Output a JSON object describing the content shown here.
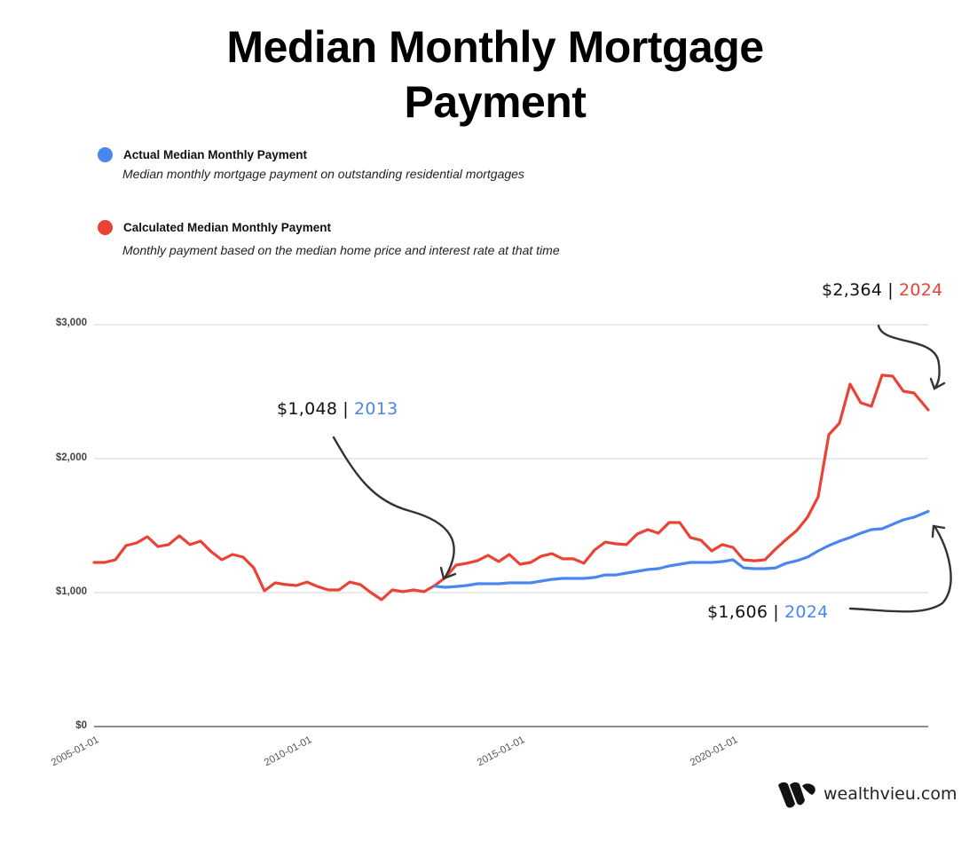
{
  "title_line1": "Median Monthly Mortgage",
  "title_line2": "Payment",
  "legend": [
    {
      "name": "Actual Median Monthly Payment",
      "description": "Median monthly mortgage payment on outstanding residential mortgages",
      "color": "#4a86f0"
    },
    {
      "name": "Calculated Median Monthly Payment",
      "description": "Monthly payment based on the median home price and interest rate at that time",
      "color": "#ea4335"
    }
  ],
  "annotations": [
    {
      "value": "$1,048",
      "sep": "|",
      "year": "2013",
      "year_color": "#4a86f0"
    },
    {
      "value": "$2,364",
      "sep": "|",
      "year": "2024",
      "year_color": "#ea4335"
    },
    {
      "value": "$1,606",
      "sep": "|",
      "year": "2024",
      "year_color": "#4a86f0"
    }
  ],
  "brand": {
    "name": "wealthvieu.com"
  },
  "chart_data": {
    "type": "line",
    "title": "Median Monthly Mortgage Payment",
    "xlabel": "",
    "ylabel": "",
    "ylim": [
      0,
      3000
    ],
    "yticks": [
      "$0",
      "$1,000",
      "$2,000",
      "$3,000"
    ],
    "xticks": [
      "2005-01-01",
      "2010-01-01",
      "2015-01-01",
      "2020-01-01"
    ],
    "grid": true,
    "legend_position": "top-left",
    "x_frequency": "quarterly",
    "x_start": "2005-Q1",
    "x_end": "2024-Q3",
    "series": [
      {
        "name": "Calculated Median Monthly Payment",
        "color": "#ea4335",
        "start_index": 0,
        "values": [
          1225,
          1225,
          1245,
          1351,
          1371,
          1417,
          1344,
          1358,
          1424,
          1358,
          1384,
          1305,
          1245,
          1285,
          1265,
          1185,
          1013,
          1073,
          1060,
          1053,
          1079,
          1046,
          1020,
          1020,
          1079,
          1060,
          1000,
          947,
          1020,
          1007,
          1020,
          1007,
          1053,
          1113,
          1205,
          1219,
          1238,
          1278,
          1232,
          1285,
          1212,
          1225,
          1272,
          1291,
          1252,
          1252,
          1219,
          1318,
          1377,
          1364,
          1358,
          1437,
          1470,
          1444,
          1523,
          1523,
          1411,
          1391,
          1311,
          1358,
          1338,
          1245,
          1238,
          1245,
          1325,
          1397,
          1464,
          1563,
          1715,
          2179,
          2265,
          2556,
          2417,
          2391,
          2623,
          2616,
          2503,
          2490,
          2364
        ]
      },
      {
        "name": "Actual Median Monthly Payment",
        "color": "#4a86f0",
        "start_index": 32,
        "values": [
          1048,
          1040,
          1046,
          1053,
          1066,
          1066,
          1066,
          1073,
          1073,
          1073,
          1086,
          1099,
          1106,
          1106,
          1106,
          1113,
          1132,
          1132,
          1146,
          1159,
          1172,
          1179,
          1199,
          1212,
          1225,
          1225,
          1225,
          1232,
          1245,
          1185,
          1179,
          1179,
          1185,
          1219,
          1238,
          1265,
          1311,
          1351,
          1384,
          1411,
          1444,
          1470,
          1477,
          1510,
          1543,
          1563,
          1606
        ]
      }
    ]
  }
}
